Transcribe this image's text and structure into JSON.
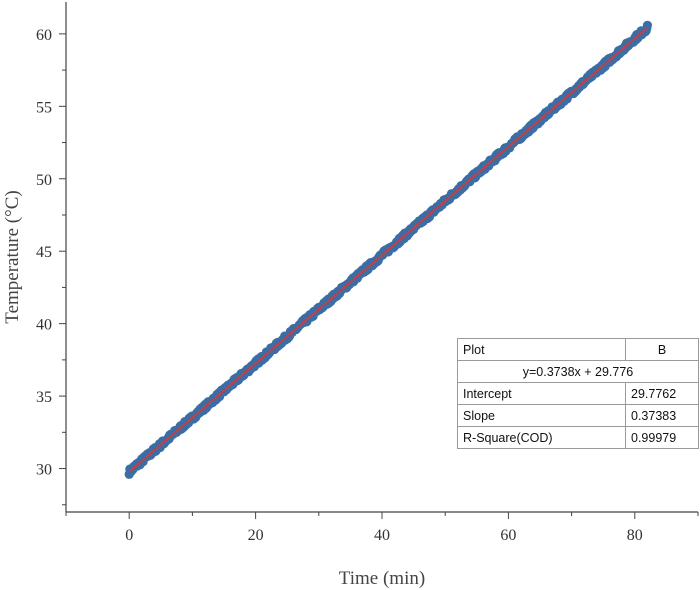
{
  "chart_data": {
    "type": "scatter",
    "xlabel": "Time (min)",
    "ylabel": "Temperature (°C)",
    "xlim": [
      -10,
      90
    ],
    "ylim": [
      27,
      62.2
    ],
    "xticks": [
      "0",
      "20",
      "40",
      "60",
      "80"
    ],
    "yticks": [
      "30",
      "35",
      "40",
      "45",
      "50",
      "55",
      "60"
    ],
    "xtick_values": [
      0,
      20,
      40,
      60,
      80
    ],
    "ytick_values": [
      30,
      35,
      40,
      45,
      50,
      55,
      60
    ],
    "minor_x_step": 10,
    "minor_y_step": 2.5,
    "grid": false,
    "series": [
      {
        "kind": "points",
        "x_range": [
          0,
          82
        ],
        "slope": 0.3738,
        "intercept": 29.776,
        "color": "#3a6ea5"
      },
      {
        "kind": "fit-line",
        "x_range": [
          0,
          82
        ],
        "slope": 0.3738,
        "intercept": 29.776,
        "color": "#c0404a"
      }
    ]
  },
  "stats_table": {
    "header_label": "Plot",
    "header_value": "B",
    "equation": "y=0.3738x + 29.776",
    "rows": [
      {
        "label": "Intercept",
        "value": "29.7762"
      },
      {
        "label": "Slope",
        "value": "0.37383"
      },
      {
        "label": "R-Square(COD)",
        "value": "0.99979"
      }
    ]
  }
}
